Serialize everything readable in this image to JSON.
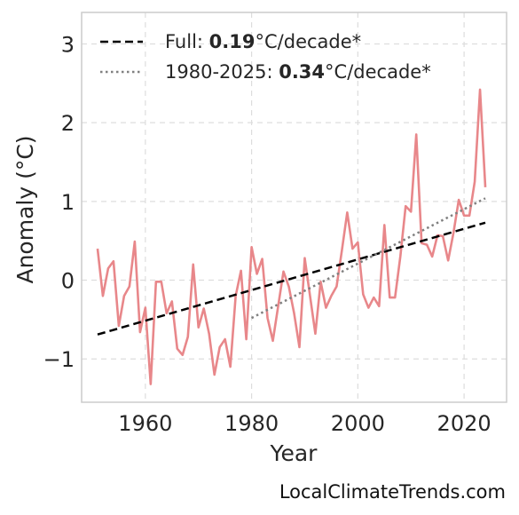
{
  "chart_data": {
    "type": "line",
    "title": "",
    "xlabel": "Year",
    "ylabel": "Anomaly (°C)",
    "xlim": [
      1948,
      2028
    ],
    "ylim": [
      -1.55,
      3.4
    ],
    "x_ticks": [
      1960,
      1980,
      2000,
      2020
    ],
    "x_tick_labels": [
      "1960",
      "1980",
      "2000",
      "2020"
    ],
    "y_ticks": [
      -1,
      0,
      1,
      2,
      3
    ],
    "y_tick_labels": [
      "−1",
      "0",
      "1",
      "2",
      "3"
    ],
    "grid": true,
    "legend_position": "top-left",
    "legend": [
      {
        "id": "full",
        "prefix": "Full: ",
        "value": "0.19",
        "suffix": "°C/decade*",
        "style": "dashed",
        "color": "#000000"
      },
      {
        "id": "recent",
        "prefix": "1980-2025: ",
        "value": "0.34",
        "suffix": "°C/decade*",
        "style": "dotted",
        "color": "#808080"
      }
    ],
    "series": [
      {
        "id": "anomaly",
        "color": "#e8878a",
        "x": [
          1951,
          1952,
          1953,
          1954,
          1955,
          1956,
          1957,
          1958,
          1959,
          1960,
          1961,
          1962,
          1963,
          1964,
          1965,
          1966,
          1967,
          1968,
          1969,
          1970,
          1971,
          1972,
          1973,
          1974,
          1975,
          1976,
          1977,
          1978,
          1979,
          1980,
          1981,
          1982,
          1983,
          1984,
          1985,
          1986,
          1987,
          1988,
          1989,
          1990,
          1991,
          1992,
          1993,
          1994,
          1995,
          1996,
          1997,
          1998,
          1999,
          2000,
          2001,
          2002,
          2003,
          2004,
          2005,
          2006,
          2007,
          2008,
          2009,
          2010,
          2011,
          2012,
          2013,
          2014,
          2015,
          2016,
          2017,
          2018,
          2019,
          2020,
          2021,
          2022,
          2023,
          2024
        ],
        "y": [
          0.4,
          -0.2,
          0.15,
          0.24,
          -0.58,
          -0.2,
          -0.08,
          0.49,
          -0.66,
          -0.35,
          -1.32,
          -0.02,
          -0.02,
          -0.42,
          -0.27,
          -0.87,
          -0.95,
          -0.72,
          0.2,
          -0.6,
          -0.36,
          -0.68,
          -1.2,
          -0.85,
          -0.75,
          -1.1,
          -0.2,
          0.12,
          -0.75,
          0.42,
          0.08,
          0.27,
          -0.48,
          -0.77,
          -0.33,
          0.11,
          -0.08,
          -0.42,
          -0.85,
          0.28,
          -0.2,
          -0.68,
          -0.02,
          -0.35,
          -0.2,
          -0.08,
          0.38,
          0.86,
          0.4,
          0.48,
          -0.18,
          -0.35,
          -0.22,
          -0.33,
          0.7,
          -0.22,
          -0.22,
          0.3,
          0.94,
          0.87,
          1.85,
          0.47,
          0.45,
          0.3,
          0.57,
          0.56,
          0.25,
          0.6,
          1.02,
          0.82,
          0.82,
          1.25,
          2.42,
          1.18
        ]
      }
    ],
    "trends": [
      {
        "id": "full",
        "style": "dashed",
        "color": "#000000",
        "x": [
          1951,
          2024
        ],
        "y": [
          -0.69,
          0.73
        ]
      },
      {
        "id": "recent",
        "style": "dotted",
        "color": "#808080",
        "x": [
          1980,
          2024
        ],
        "y": [
          -0.48,
          1.04
        ]
      }
    ]
  },
  "source": "LocalClimateTrends.com"
}
